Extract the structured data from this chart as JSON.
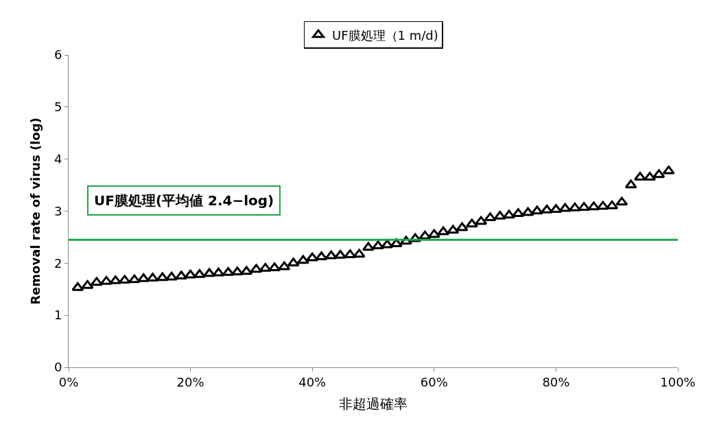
{
  "chart_data": {
    "type": "scatter",
    "xlabel": "非超過確率",
    "ylabel": "Removal rate of virus (log)",
    "x": [
      1.5,
      3.1,
      4.6,
      6.2,
      7.7,
      9.2,
      10.8,
      12.3,
      13.8,
      15.4,
      16.9,
      18.5,
      20.0,
      21.5,
      23.1,
      24.6,
      26.2,
      27.7,
      29.2,
      30.8,
      32.3,
      33.8,
      35.4,
      36.9,
      38.5,
      40.0,
      41.5,
      43.1,
      44.6,
      46.2,
      47.7,
      49.2,
      50.8,
      52.3,
      53.8,
      55.4,
      56.9,
      58.5,
      60.0,
      61.5,
      63.1,
      64.6,
      66.2,
      67.7,
      69.2,
      70.8,
      72.3,
      73.8,
      75.4,
      76.9,
      78.5,
      80.0,
      81.5,
      83.1,
      84.6,
      86.2,
      87.7,
      89.2,
      90.8,
      92.3,
      93.8,
      95.4,
      96.9,
      98.5
    ],
    "series": [
      {
        "name": "UF膜処理（1 m/d)",
        "color": "#000000",
        "values": [
          1.53,
          1.57,
          1.63,
          1.65,
          1.66,
          1.67,
          1.68,
          1.7,
          1.71,
          1.72,
          1.73,
          1.75,
          1.77,
          1.78,
          1.8,
          1.81,
          1.82,
          1.83,
          1.84,
          1.88,
          1.9,
          1.91,
          1.93,
          2.0,
          2.05,
          2.1,
          2.12,
          2.14,
          2.15,
          2.16,
          2.17,
          2.3,
          2.33,
          2.35,
          2.37,
          2.42,
          2.47,
          2.52,
          2.55,
          2.6,
          2.63,
          2.68,
          2.75,
          2.8,
          2.87,
          2.9,
          2.92,
          2.95,
          2.97,
          3.0,
          3.02,
          3.03,
          3.05,
          3.06,
          3.07,
          3.08,
          3.09,
          3.1,
          3.17,
          3.5,
          3.65,
          3.65,
          3.7,
          3.77
        ]
      }
    ],
    "xlim": [
      0,
      100
    ],
    "xticks": [
      {
        "value": 0,
        "label": "0%"
      },
      {
        "value": 20,
        "label": "20%"
      },
      {
        "value": 40,
        "label": "40%"
      },
      {
        "value": 60,
        "label": "60%"
      },
      {
        "value": 80,
        "label": "80%"
      },
      {
        "value": 100,
        "label": "100%"
      }
    ],
    "ylim": [
      0,
      6
    ],
    "yticks": [
      0,
      1,
      2,
      3,
      4,
      5,
      6
    ],
    "ref_lines": [
      {
        "axis": "y",
        "value": 2.45,
        "label": "UF膜処理(平均値 2.4−log)",
        "color": "#1aa64a"
      }
    ],
    "marker": "triangle",
    "legend": "top"
  }
}
